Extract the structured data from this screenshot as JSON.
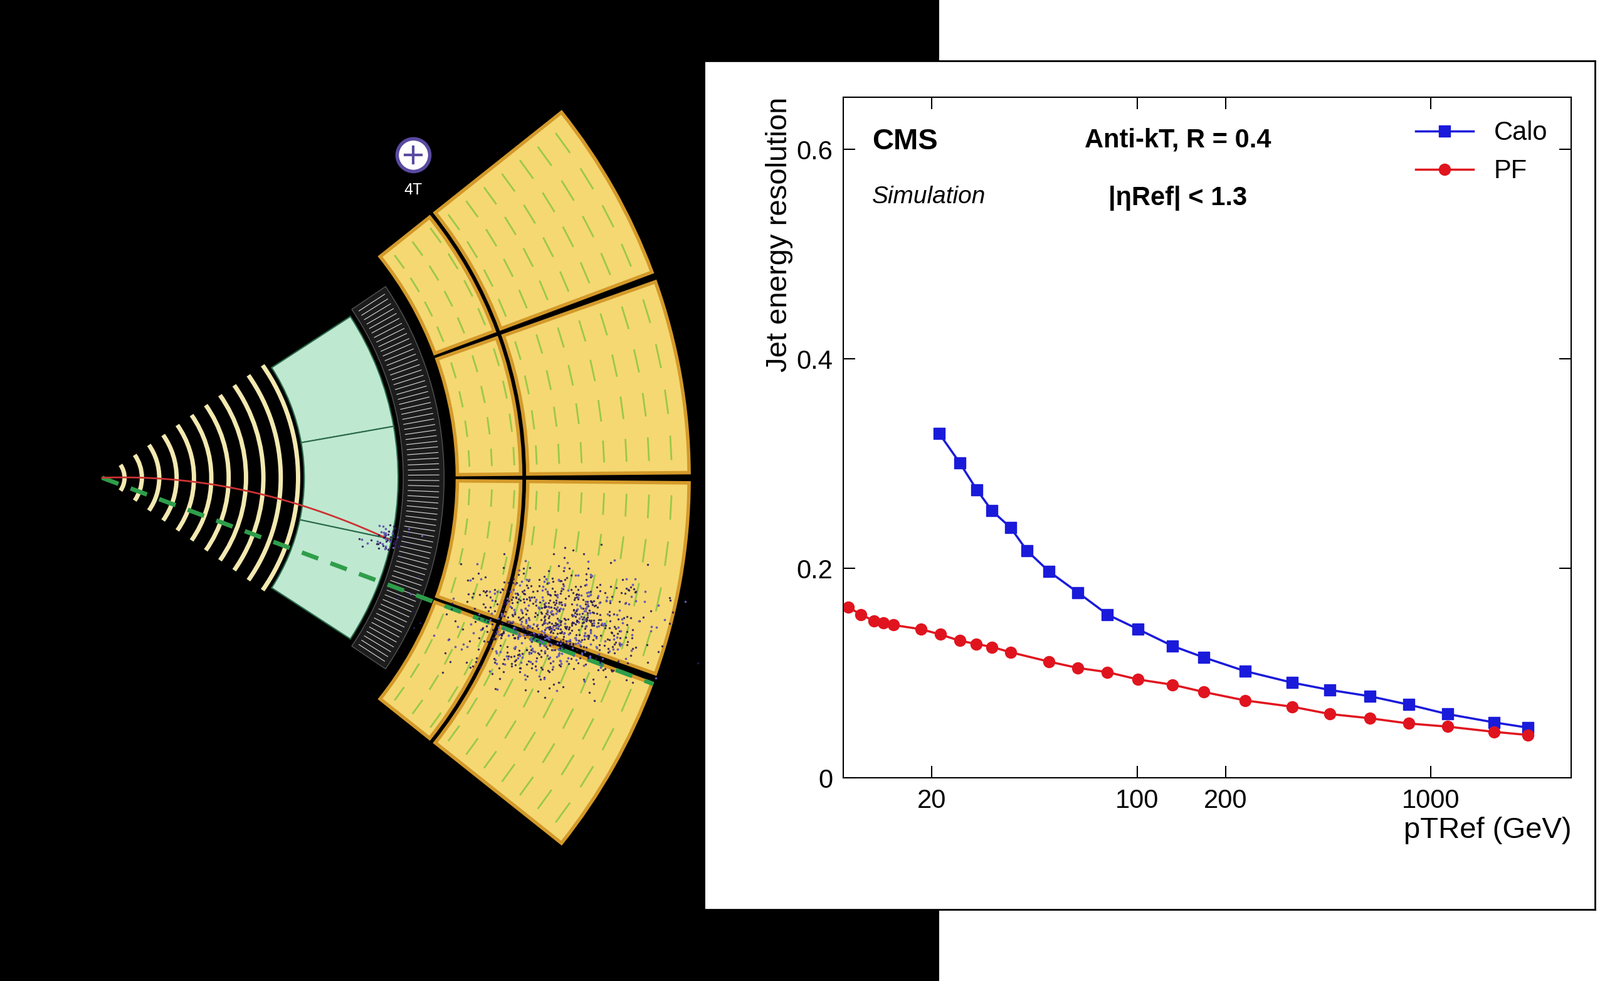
{
  "chart_data": {
    "type": "line",
    "xlabel": "pTRef (GeV)",
    "ylabel": "Jet energy resolution",
    "annotations": [
      "CMS",
      "Simulation",
      "Anti-kT, R = 0.4",
      "|ηRef| < 1.3"
    ],
    "log": "x",
    "xlim": [
      10,
      3000
    ],
    "xticks": [
      20,
      100,
      200,
      1000
    ],
    "ylim": [
      0,
      0.65
    ],
    "yticks": [
      0,
      0.2,
      0.4,
      0.6
    ],
    "legend": "upper right",
    "series": [
      {
        "name": "Calo",
        "color": "#1a1adb",
        "marker": "square",
        "line_style": "solid",
        "x": [
          21.2,
          24.9,
          28.5,
          32.1,
          37.1,
          42.2,
          50.2,
          62.9,
          79.3,
          100.8,
          132,
          169,
          233,
          337,
          453,
          619,
          839,
          1137,
          1642,
          2137
        ],
        "values": [
          0.329,
          0.301,
          0.275,
          0.255,
          0.239,
          0.217,
          0.197,
          0.177,
          0.156,
          0.142,
          0.126,
          0.115,
          0.102,
          0.091,
          0.084,
          0.078,
          0.07,
          0.061,
          0.053,
          0.048
        ]
      },
      {
        "name": "PF",
        "color": "#e0141e",
        "marker": "circle",
        "line_style": "solid",
        "x": [
          10.4,
          11.5,
          12.7,
          13.7,
          14.8,
          18.4,
          21.4,
          24.9,
          28.3,
          32.1,
          37.1,
          50.2,
          62.9,
          79.3,
          100.8,
          132,
          169,
          233,
          337,
          453,
          619,
          839,
          1137,
          1642,
          2137
        ],
        "values": [
          0.163,
          0.156,
          0.15,
          0.148,
          0.146,
          0.142,
          0.137,
          0.131,
          0.128,
          0.125,
          0.12,
          0.111,
          0.105,
          0.101,
          0.094,
          0.089,
          0.082,
          0.074,
          0.068,
          0.061,
          0.057,
          0.052,
          0.049,
          0.044,
          0.041
        ]
      }
    ]
  },
  "diagram": {
    "magnet_label": "4T"
  }
}
